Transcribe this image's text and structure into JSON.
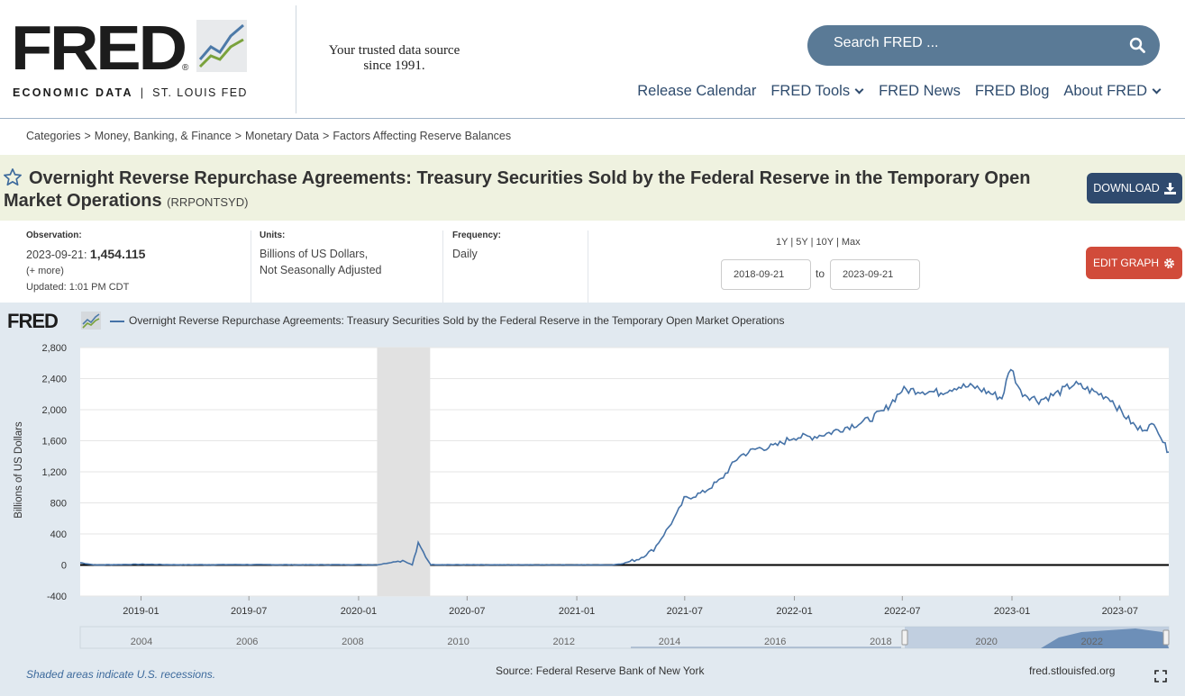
{
  "header": {
    "logo_word": "FRED",
    "logo_reg": "®",
    "logo_sub_left": "ECONOMIC DATA",
    "logo_sub_sep": "|",
    "logo_sub_right": "ST. LOUIS FED",
    "tagline_line1": "Your trusted data source",
    "tagline_line2": "since 1991.",
    "search_placeholder": "Search FRED ...",
    "nav": [
      {
        "label": "Release Calendar",
        "dropdown": false
      },
      {
        "label": "FRED Tools",
        "dropdown": true
      },
      {
        "label": "FRED News",
        "dropdown": false
      },
      {
        "label": "FRED Blog",
        "dropdown": false
      },
      {
        "label": "About FRED",
        "dropdown": true
      }
    ]
  },
  "breadcrumb": [
    "Categories",
    "Money, Banking, & Finance",
    "Monetary Data",
    "Factors Affecting Reserve Balances"
  ],
  "series": {
    "title": "Overnight Reverse Repurchase Agreements: Treasury Securities Sold by the Federal Reserve in the Temporary Open Market Operations",
    "id": "(RRPONTSYD)",
    "download_label": "DOWNLOAD"
  },
  "meta": {
    "observation_label": "Observation:",
    "observation_date": "2023-09-21:",
    "observation_value": "1,454.115",
    "more_link": "(+ more)",
    "updated": "Updated: 1:01 PM CDT",
    "units_label": "Units:",
    "units_line1": "Billions of US Dollars,",
    "units_line2": "Not Seasonally Adjusted",
    "frequency_label": "Frequency:",
    "frequency_value": "Daily",
    "range_links": [
      "1Y",
      "5Y",
      "10Y",
      "Max"
    ],
    "range_sep": "|",
    "start_date": "2018-09-21",
    "to_label": "to",
    "end_date": "2023-09-21",
    "edit_label": "EDIT GRAPH"
  },
  "graph": {
    "logo_word": "FRED",
    "legend_label": "Overnight Reverse Repurchase Agreements: Treasury Securities Sold by the Federal Reserve in the Temporary Open Market Operations",
    "recession_note": "Shaded areas indicate U.S. recessions.",
    "source": "Source: Federal Reserve Bank of New York",
    "site_url": "fred.stlouisfed.org",
    "line_color": "#4572a7",
    "recession_color": "#e1e1e1"
  },
  "chart_data": {
    "type": "line",
    "ylabel": "Billions of US Dollars",
    "xlabel": "",
    "ylim": [
      -400,
      2800
    ],
    "yticks": [
      2800,
      2400,
      2000,
      1600,
      1200,
      800,
      400,
      0,
      -400
    ],
    "ytick_labels": [
      "2,800",
      "2,400",
      "2,000",
      "1,600",
      "1,200",
      "800",
      "400",
      "0",
      "-400"
    ],
    "xlim": [
      "2018-09-21",
      "2023-09-21"
    ],
    "xticks": [
      "2019-01",
      "2019-07",
      "2020-01",
      "2020-07",
      "2021-01",
      "2021-07",
      "2022-01",
      "2022-07",
      "2023-01",
      "2023-07"
    ],
    "recession": [
      "2020-02",
      "2020-04"
    ],
    "navigator_ticks": [
      "2004",
      "2006",
      "2008",
      "2010",
      "2012",
      "2014",
      "2016",
      "2018",
      "2020",
      "2022"
    ],
    "series": [
      {
        "name": "Overnight Reverse Repurchase Agreements: Treasury Securities Sold by the Federal Reserve in the Temporary Open Market Operations",
        "x": [
          "2018-09-21",
          "2018-10-15",
          "2018-12-31",
          "2019-03-01",
          "2019-06-28",
          "2019-09-30",
          "2019-12-31",
          "2020-02-01",
          "2020-03-15",
          "2020-03-31",
          "2020-04-10",
          "2020-05-01",
          "2020-08-01",
          "2020-12-01",
          "2021-03-01",
          "2021-03-20",
          "2021-04-15",
          "2021-05-10",
          "2021-05-31",
          "2021-06-17",
          "2021-06-30",
          "2021-07-31",
          "2021-08-31",
          "2021-09-30",
          "2021-10-31",
          "2021-11-30",
          "2021-12-31",
          "2022-01-31",
          "2022-02-28",
          "2022-03-31",
          "2022-04-30",
          "2022-05-31",
          "2022-06-30",
          "2022-07-31",
          "2022-08-31",
          "2022-09-30",
          "2022-10-31",
          "2022-11-30",
          "2022-12-15",
          "2022-12-30",
          "2023-01-15",
          "2023-02-15",
          "2023-03-15",
          "2023-04-15",
          "2023-05-15",
          "2023-06-15",
          "2023-06-30",
          "2023-07-31",
          "2023-08-31",
          "2023-09-15",
          "2023-09-21"
        ],
        "y": [
          30,
          0,
          10,
          3,
          5,
          2,
          5,
          1,
          60,
          0,
          270,
          5,
          1,
          1,
          0,
          20,
          80,
          200,
          440,
          640,
          850,
          930,
          1100,
          1400,
          1500,
          1530,
          1650,
          1650,
          1700,
          1780,
          1850,
          1980,
          2250,
          2250,
          2220,
          2300,
          2290,
          2200,
          2150,
          2550,
          2230,
          2120,
          2200,
          2330,
          2240,
          2150,
          2000,
          1750,
          1800,
          1530,
          1454
        ]
      }
    ]
  }
}
